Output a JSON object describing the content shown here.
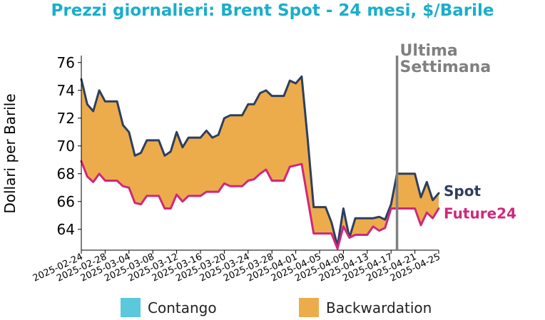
{
  "chart_data": {
    "type": "line",
    "title": "Prezzi giornalieri: Brent Spot - 24 mesi, $/Barile",
    "ylabel": "Dollari per Barile",
    "xlabel": "",
    "ylim": [
      62.5,
      76.5
    ],
    "yticks": [
      64,
      66,
      68,
      70,
      72,
      74,
      76
    ],
    "xlim": [
      "2025-02-24",
      "2025-04-25"
    ],
    "xticks": [
      "2025-02-24",
      "2025-02-28",
      "2025-03-04",
      "2025-03-08",
      "2025-03-12",
      "2025-03-16",
      "2025-03-20",
      "2025-03-24",
      "2025-03-28",
      "2025-04-01",
      "2025-04-05",
      "2025-04-09",
      "2025-04-13",
      "2025-04-17",
      "2025-04-21",
      "2025-04-25"
    ],
    "annotation": {
      "date": "2025-04-18",
      "line1": "Ultima",
      "line2": "Settimana",
      "color": "#808080"
    },
    "legend": [
      {
        "label": "Contango",
        "color": "#5bc8dc"
      },
      {
        "label": "Backwardation",
        "color": "#ecac4c"
      }
    ],
    "legend_position": "bottom",
    "grid": false,
    "series": [
      {
        "name": "Spot",
        "color": "#2e3f5e",
        "x": [
          "2025-02-24",
          "2025-02-25",
          "2025-02-26",
          "2025-02-27",
          "2025-02-28",
          "2025-03-01",
          "2025-03-02",
          "2025-03-03",
          "2025-03-04",
          "2025-03-05",
          "2025-03-06",
          "2025-03-07",
          "2025-03-08",
          "2025-03-09",
          "2025-03-10",
          "2025-03-11",
          "2025-03-12",
          "2025-03-13",
          "2025-03-14",
          "2025-03-15",
          "2025-03-16",
          "2025-03-17",
          "2025-03-18",
          "2025-03-19",
          "2025-03-20",
          "2025-03-21",
          "2025-03-22",
          "2025-03-23",
          "2025-03-24",
          "2025-03-25",
          "2025-03-26",
          "2025-03-27",
          "2025-03-28",
          "2025-03-29",
          "2025-03-30",
          "2025-03-31",
          "2025-04-01",
          "2025-04-02",
          "2025-04-03",
          "2025-04-04",
          "2025-04-05",
          "2025-04-06",
          "2025-04-07",
          "2025-04-08",
          "2025-04-09",
          "2025-04-10",
          "2025-04-11",
          "2025-04-12",
          "2025-04-13",
          "2025-04-14",
          "2025-04-15",
          "2025-04-16",
          "2025-04-17",
          "2025-04-18",
          "2025-04-19",
          "2025-04-20",
          "2025-04-21",
          "2025-04-22",
          "2025-04-23",
          "2025-04-24",
          "2025-04-25"
        ],
        "values": [
          74.8,
          73.0,
          72.5,
          74.0,
          73.2,
          73.2,
          73.2,
          71.5,
          71.0,
          69.3,
          69.5,
          70.4,
          70.4,
          70.4,
          69.3,
          69.6,
          71.0,
          69.9,
          70.6,
          70.6,
          70.6,
          71.1,
          70.6,
          70.8,
          72.0,
          72.2,
          72.2,
          72.2,
          73.0,
          73.0,
          73.8,
          74.0,
          73.6,
          73.6,
          73.6,
          74.7,
          74.5,
          75.0,
          70.5,
          65.6,
          65.6,
          65.6,
          64.5,
          62.8,
          65.5,
          63.4,
          64.8,
          64.8,
          64.8,
          64.8,
          64.9,
          64.7,
          65.8,
          68.0,
          68.0,
          68.0,
          68.0,
          66.3,
          67.4,
          66.1,
          66.6
        ]
      },
      {
        "name": "Future24",
        "color": "#d0287a",
        "x": [
          "2025-02-24",
          "2025-02-25",
          "2025-02-26",
          "2025-02-27",
          "2025-02-28",
          "2025-03-01",
          "2025-03-02",
          "2025-03-03",
          "2025-03-04",
          "2025-03-05",
          "2025-03-06",
          "2025-03-07",
          "2025-03-08",
          "2025-03-09",
          "2025-03-10",
          "2025-03-11",
          "2025-03-12",
          "2025-03-13",
          "2025-03-14",
          "2025-03-15",
          "2025-03-16",
          "2025-03-17",
          "2025-03-18",
          "2025-03-19",
          "2025-03-20",
          "2025-03-21",
          "2025-03-22",
          "2025-03-23",
          "2025-03-24",
          "2025-03-25",
          "2025-03-26",
          "2025-03-27",
          "2025-03-28",
          "2025-03-29",
          "2025-03-30",
          "2025-03-31",
          "2025-04-01",
          "2025-04-02",
          "2025-04-03",
          "2025-04-04",
          "2025-04-05",
          "2025-04-06",
          "2025-04-07",
          "2025-04-08",
          "2025-04-09",
          "2025-04-10",
          "2025-04-11",
          "2025-04-12",
          "2025-04-13",
          "2025-04-14",
          "2025-04-15",
          "2025-04-16",
          "2025-04-17",
          "2025-04-18",
          "2025-04-19",
          "2025-04-20",
          "2025-04-21",
          "2025-04-22",
          "2025-04-23",
          "2025-04-24",
          "2025-04-25"
        ],
        "values": [
          68.9,
          67.8,
          67.4,
          68.0,
          67.5,
          67.5,
          67.5,
          67.1,
          67.0,
          65.9,
          65.8,
          66.4,
          66.4,
          66.4,
          65.5,
          65.5,
          66.5,
          66.0,
          66.4,
          66.4,
          66.4,
          66.7,
          66.7,
          66.7,
          67.3,
          67.1,
          67.1,
          67.1,
          67.5,
          67.6,
          68.0,
          68.3,
          67.5,
          67.5,
          67.5,
          68.5,
          68.6,
          68.7,
          66.2,
          63.7,
          63.7,
          63.7,
          63.7,
          62.6,
          64.2,
          63.4,
          63.6,
          63.6,
          63.6,
          64.2,
          63.9,
          64.1,
          65.5,
          65.5,
          65.5,
          65.5,
          65.5,
          64.3,
          65.2,
          64.8,
          65.5
        ]
      }
    ]
  }
}
